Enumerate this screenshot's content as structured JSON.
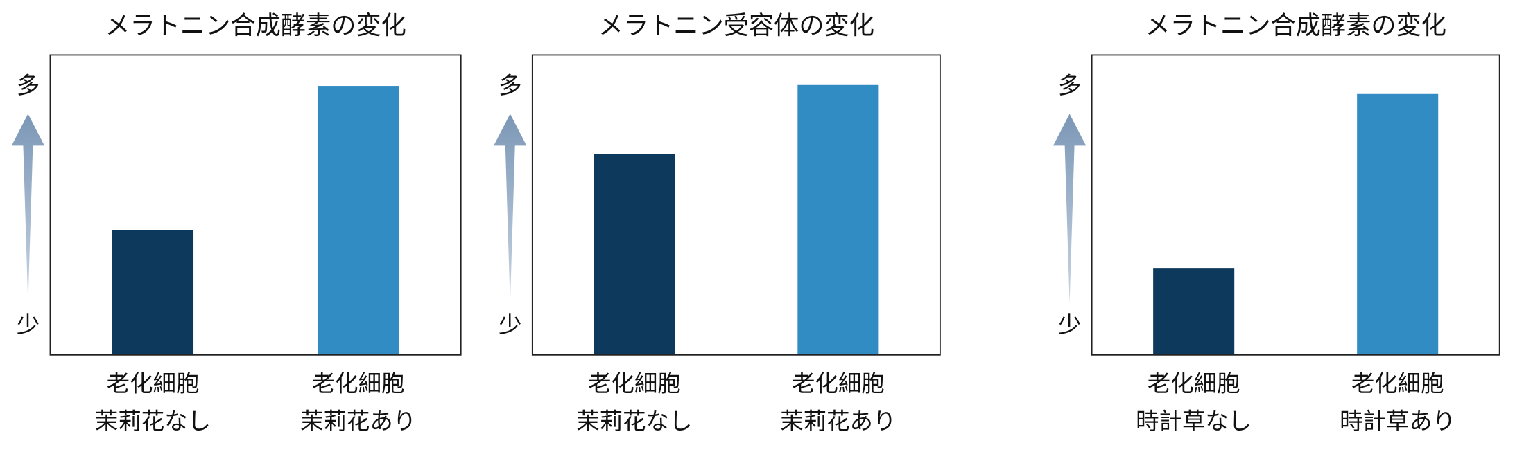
{
  "chart_data": [
    {
      "type": "bar",
      "title": "メラトニン合成酵素の変化",
      "categories": [
        [
          "老化細胞",
          "茉莉花なし"
        ],
        [
          "老化細胞",
          "茉莉花あり"
        ]
      ],
      "values": [
        41.5,
        89.7
      ],
      "colors": [
        "#0d3a5c",
        "#318cc3"
      ],
      "ylim": [
        0,
        100
      ],
      "y_axis_labels": [
        "少",
        "多"
      ]
    },
    {
      "type": "bar",
      "title": "メラトニン受容体の変化",
      "categories": [
        [
          "老化細胞",
          "茉莉花なし"
        ],
        [
          "老化細胞",
          "茉莉花あり"
        ]
      ],
      "values": [
        67,
        90
      ],
      "colors": [
        "#0d3a5c",
        "#318cc3"
      ],
      "ylim": [
        0,
        100
      ],
      "y_axis_labels": [
        "少",
        "多"
      ]
    },
    {
      "type": "bar",
      "title": "メラトニン合成酵素の変化",
      "categories": [
        [
          "老化細胞",
          "時計草なし"
        ],
        [
          "老化細胞",
          "時計草あり"
        ]
      ],
      "values": [
        29,
        87
      ],
      "colors": [
        "#0d3a5c",
        "#318cc3"
      ],
      "ylim": [
        0,
        100
      ],
      "y_axis_labels": [
        "少",
        "多"
      ]
    }
  ]
}
